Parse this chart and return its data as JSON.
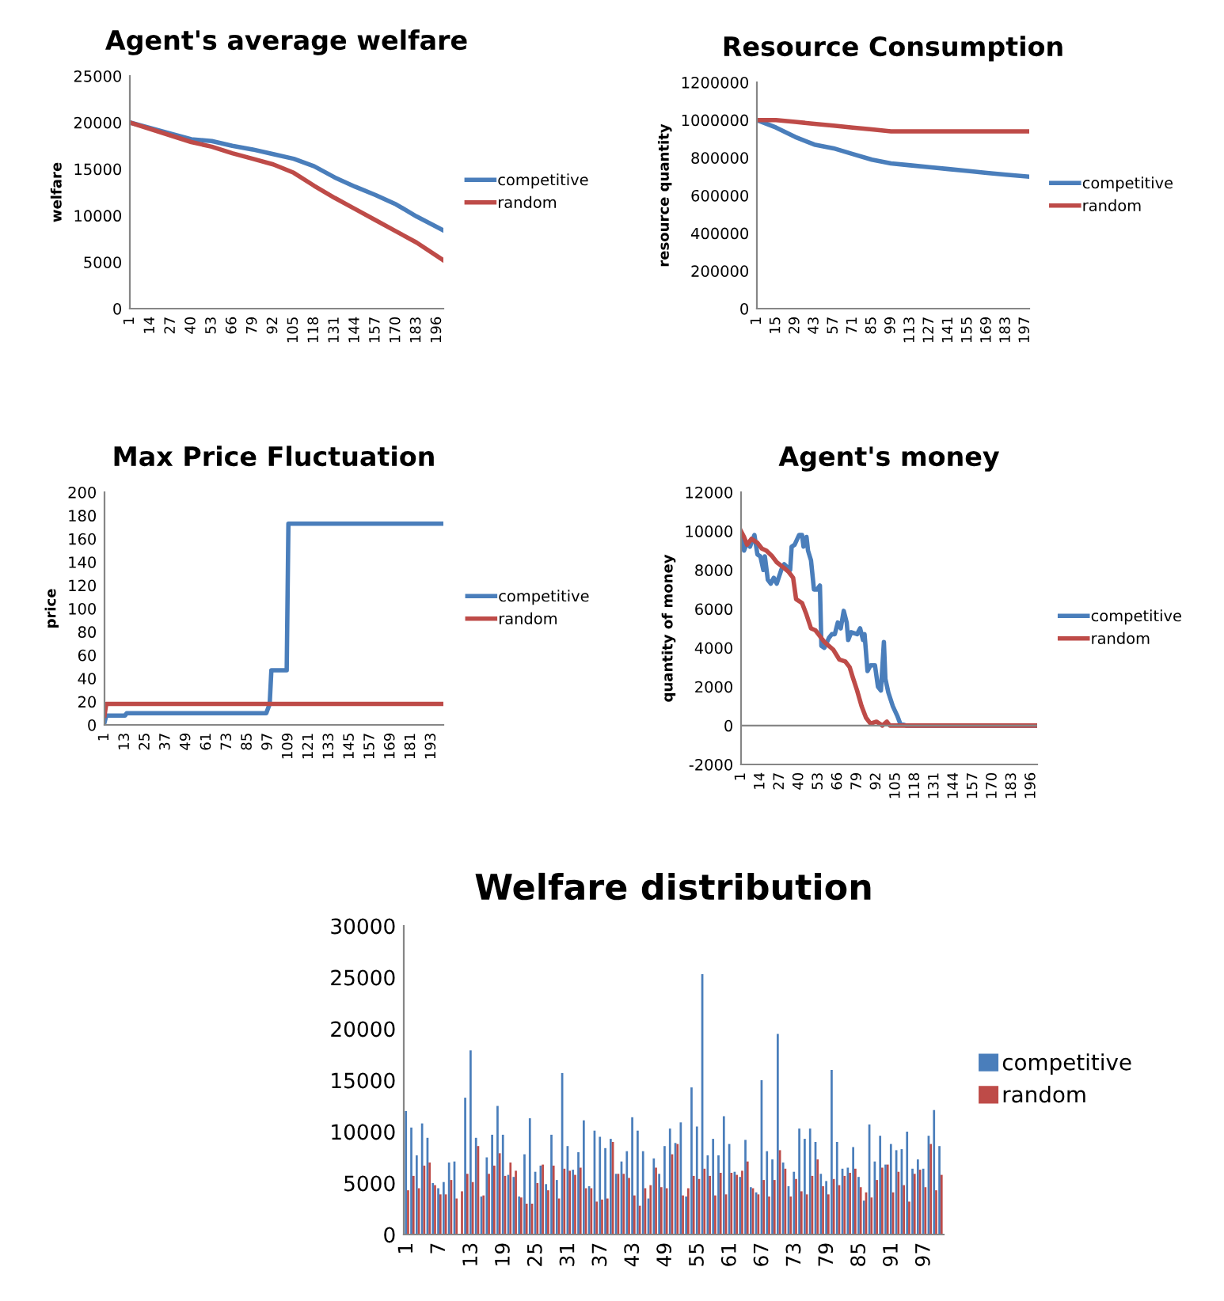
{
  "chart_data": [
    {
      "type": "line",
      "title": "Agent's average welfare",
      "ylabel": "welfare",
      "xlim": [
        1,
        200
      ],
      "xticks": [
        1,
        14,
        27,
        40,
        53,
        66,
        79,
        92,
        105,
        118,
        131,
        144,
        157,
        170,
        183,
        196
      ],
      "ylim": [
        0,
        25000
      ],
      "yticks": [
        0,
        5000,
        10000,
        15000,
        20000,
        25000
      ],
      "legend": "right",
      "grid": false,
      "series": [
        {
          "name": "competitive",
          "color": "#4a7ebb",
          "x": [
            1,
            27,
            40,
            53,
            66,
            79,
            92,
            105,
            118,
            131,
            144,
            157,
            170,
            183,
            200
          ],
          "values": [
            20000,
            18800,
            18200,
            18000,
            17500,
            17100,
            16600,
            16100,
            15300,
            14100,
            13100,
            12200,
            11200,
            9900,
            8400
          ]
        },
        {
          "name": "random",
          "color": "#be4b48",
          "x": [
            1,
            27,
            40,
            53,
            66,
            79,
            92,
            105,
            118,
            131,
            144,
            157,
            170,
            183,
            200
          ],
          "values": [
            20000,
            18600,
            17900,
            17400,
            16700,
            16100,
            15500,
            14600,
            13200,
            11900,
            10700,
            9500,
            8300,
            7100,
            5200
          ]
        }
      ]
    },
    {
      "type": "line",
      "title": "Resource Consumption",
      "ylabel": "resource quantity",
      "xlim": [
        1,
        200
      ],
      "xticks": [
        1,
        15,
        29,
        43,
        57,
        71,
        85,
        99,
        113,
        127,
        141,
        155,
        169,
        183,
        197
      ],
      "ylim": [
        0,
        1200000
      ],
      "yticks": [
        0,
        200000,
        400000,
        600000,
        800000,
        1000000,
        1200000
      ],
      "legend": "right",
      "grid": false,
      "series": [
        {
          "name": "competitive",
          "color": "#4a7ebb",
          "x": [
            1,
            15,
            29,
            43,
            57,
            71,
            85,
            99,
            113,
            127,
            141,
            155,
            169,
            183,
            200
          ],
          "values": [
            1000000,
            960000,
            910000,
            870000,
            850000,
            820000,
            790000,
            770000,
            760000,
            750000,
            740000,
            730000,
            720000,
            710000,
            700000
          ]
        },
        {
          "name": "random",
          "color": "#be4b48",
          "x": [
            1,
            15,
            29,
            43,
            57,
            71,
            85,
            99,
            200
          ],
          "values": [
            1000000,
            1000000,
            990000,
            980000,
            970000,
            960000,
            950000,
            940000,
            940000
          ]
        }
      ]
    },
    {
      "type": "line",
      "title": "Max Price Fluctuation",
      "ylabel": "price",
      "xlim": [
        1,
        200
      ],
      "xticks": [
        1,
        13,
        25,
        37,
        49,
        61,
        73,
        85,
        97,
        109,
        121,
        133,
        145,
        157,
        169,
        181,
        193
      ],
      "ylim": [
        0,
        200
      ],
      "yticks": [
        0,
        20,
        40,
        60,
        80,
        100,
        120,
        140,
        160,
        180,
        200
      ],
      "legend": "right",
      "grid": false,
      "series": [
        {
          "name": "competitive",
          "color": "#4a7ebb",
          "x": [
            1,
            2,
            13,
            14,
            96,
            98,
            99,
            108,
            109,
            200
          ],
          "values": [
            2,
            8,
            8,
            10,
            10,
            18,
            47,
            47,
            173,
            173
          ]
        },
        {
          "name": "random",
          "color": "#be4b48",
          "x": [
            1,
            2,
            200
          ],
          "values": [
            8,
            18,
            18
          ]
        }
      ]
    },
    {
      "type": "line",
      "title": "Agent's money",
      "ylabel": "quantity of money",
      "xlim": [
        1,
        200
      ],
      "xticks": [
        1,
        14,
        27,
        40,
        53,
        66,
        79,
        92,
        105,
        118,
        131,
        144,
        157,
        170,
        183,
        196
      ],
      "ylim": [
        -2000,
        12000
      ],
      "yticks": [
        -2000,
        0,
        2000,
        4000,
        6000,
        8000,
        10000,
        12000
      ],
      "legend": "right",
      "grid": false,
      "ref_lines": [
        {
          "axis": "y",
          "value": 0,
          "color": "#868686"
        }
      ],
      "series": [
        {
          "name": "competitive",
          "color": "#4a7ebb",
          "x": [
            1,
            3,
            5,
            7,
            10,
            12,
            14,
            16,
            17,
            19,
            21,
            23,
            25,
            28,
            30,
            34,
            35,
            37,
            40,
            42,
            43,
            45,
            46,
            48,
            50,
            52,
            54,
            55,
            57,
            60,
            62,
            64,
            66,
            68,
            70,
            72,
            73,
            75,
            79,
            81,
            83,
            84,
            86,
            88,
            91,
            93,
            95,
            97,
            98,
            100,
            103,
            106,
            108,
            112,
            200
          ],
          "values": [
            9700,
            9000,
            9400,
            9200,
            9800,
            8800,
            8700,
            8000,
            8700,
            7500,
            7300,
            7600,
            7300,
            8000,
            8300,
            8000,
            9200,
            9300,
            9800,
            9800,
            9200,
            9700,
            9000,
            8500,
            7000,
            7000,
            7200,
            4100,
            4000,
            4500,
            4700,
            4700,
            5300,
            5000,
            5900,
            5300,
            4400,
            4800,
            4700,
            5000,
            4400,
            4700,
            2800,
            3100,
            3100,
            2000,
            1800,
            4300,
            2400,
            1700,
            1000,
            500,
            100,
            0,
            0
          ]
        },
        {
          "name": "random",
          "color": "#be4b48",
          "x": [
            1,
            3,
            5,
            8,
            12,
            15,
            18,
            22,
            25,
            30,
            33,
            36,
            38,
            42,
            45,
            48,
            51,
            54,
            57,
            60,
            63,
            67,
            71,
            74,
            76,
            79,
            82,
            85,
            88,
            92,
            96,
            99,
            101,
            200
          ],
          "values": [
            10000,
            9700,
            9300,
            9600,
            9400,
            9100,
            9000,
            8700,
            8400,
            8100,
            7900,
            7600,
            6500,
            6300,
            5700,
            5000,
            4900,
            4600,
            4300,
            4100,
            3900,
            3400,
            3300,
            3000,
            2500,
            1800,
            1000,
            400,
            100,
            200,
            0,
            200,
            0,
            0
          ]
        }
      ]
    },
    {
      "type": "bar",
      "title": "Welfare distribution",
      "ylim": [
        0,
        30000
      ],
      "yticks": [
        0,
        5000,
        10000,
        15000,
        20000,
        25000,
        30000
      ],
      "legend": "right",
      "grid": false,
      "categories": [
        "1",
        null,
        null,
        null,
        null,
        null,
        "7",
        null,
        null,
        null,
        null,
        null,
        "13",
        null,
        null,
        null,
        null,
        null,
        "19",
        null,
        null,
        null,
        null,
        null,
        "25",
        null,
        null,
        null,
        null,
        null,
        "31",
        null,
        null,
        null,
        null,
        null,
        "37",
        null,
        null,
        null,
        null,
        null,
        "43",
        null,
        null,
        null,
        null,
        null,
        "49",
        null,
        null,
        null,
        null,
        null,
        "55",
        null,
        null,
        null,
        null,
        null,
        "61",
        null,
        null,
        null,
        null,
        null,
        "67",
        null,
        null,
        null,
        null,
        null,
        "73",
        null,
        null,
        null,
        null,
        null,
        "79",
        null,
        null,
        null,
        null,
        null,
        "85",
        null,
        null,
        null,
        null,
        null,
        "91",
        null,
        null,
        null,
        null,
        null,
        "97",
        null,
        null,
        null
      ],
      "series": [
        {
          "name": "competitive",
          "color": "#4a7ebb",
          "values": [
            12000,
            10400,
            7700,
            10800,
            9400,
            5000,
            4500,
            5100,
            7000,
            7100,
            0,
            13300,
            17900,
            9400,
            3700,
            7500,
            9700,
            12500,
            9700,
            5800,
            5600,
            3700,
            7800,
            11300,
            6100,
            6700,
            4900,
            9700,
            5300,
            15700,
            8600,
            6300,
            8000,
            11100,
            4700,
            10100,
            9500,
            8400,
            9300,
            5900,
            7100,
            8100,
            11400,
            10100,
            8100,
            3500,
            7400,
            5900,
            8600,
            10300,
            8900,
            10900,
            3700,
            14300,
            10500,
            25300,
            7700,
            9300,
            7700,
            11500,
            8800,
            6100,
            5600,
            9200,
            4600,
            4100,
            15000,
            8100,
            7300,
            19500,
            7000,
            4700,
            6100,
            10300,
            9300,
            10300,
            9000,
            5900,
            5200,
            16000,
            9000,
            6400,
            6500,
            8500,
            5600,
            3300,
            10700,
            7100,
            9600,
            6800,
            8800,
            8200,
            8300,
            10000,
            6400,
            7300,
            6400,
            9600,
            12100,
            8600
          ]
        },
        {
          "name": "random",
          "color": "#be4b48",
          "values": [
            4300,
            5700,
            4500,
            6700,
            7000,
            4800,
            3900,
            3900,
            5300,
            3500,
            4200,
            5900,
            5100,
            8600,
            3800,
            5900,
            6700,
            7900,
            5700,
            7000,
            6200,
            3600,
            3000,
            3000,
            5000,
            6800,
            4300,
            6700,
            3500,
            6400,
            6200,
            5800,
            6500,
            4500,
            4500,
            3200,
            3400,
            3500,
            9000,
            5900,
            5900,
            5500,
            3800,
            2800,
            4500,
            4800,
            6500,
            4600,
            4500,
            7800,
            8800,
            3800,
            4500,
            5700,
            5400,
            6400,
            5700,
            3800,
            6000,
            3900,
            6000,
            5800,
            6200,
            7100,
            4500,
            3900,
            5300,
            3700,
            5300,
            8200,
            6400,
            3700,
            5400,
            4200,
            3900,
            5700,
            7300,
            4700,
            3900,
            5400,
            4800,
            5700,
            6000,
            6400,
            4600,
            4100,
            3600,
            5300,
            6500,
            6800,
            4100,
            6100,
            4800,
            3200,
            5900,
            6300,
            4600,
            8800,
            4300,
            5800
          ]
        }
      ]
    }
  ]
}
